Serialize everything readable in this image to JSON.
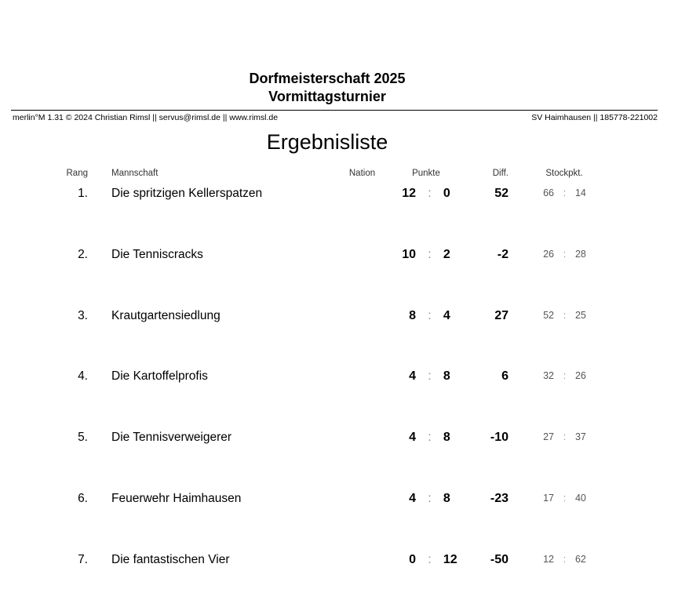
{
  "header": {
    "title_line1": "Dorfmeisterschaft 2025",
    "title_line2": "Vormittagsturnier",
    "info_left": "merlin°M 1.31 © 2024 Christian Rimsl || servus@rimsl.de || www.rimsl.de",
    "info_right": "SV Haimhausen || 185778-221002"
  },
  "list_title": "Ergebnisliste",
  "table": {
    "separator": ":",
    "columns": {
      "rang": "Rang",
      "mannschaft": "Mannschaft",
      "nation": "Nation",
      "punkte": "Punkte",
      "diff": "Diff.",
      "stockpkt": "Stockpkt."
    },
    "rows": [
      {
        "rank": "1.",
        "team": "Die spritzigen Kellerspatzen",
        "punkte_for": "12",
        "punkte_against": "0",
        "diff": "52",
        "stock_for": "66",
        "stock_against": "14"
      },
      {
        "rank": "2.",
        "team": "Die Tenniscracks",
        "punkte_for": "10",
        "punkte_against": "2",
        "diff": "-2",
        "stock_for": "26",
        "stock_against": "28"
      },
      {
        "rank": "3.",
        "team": "Krautgartensiedlung",
        "punkte_for": "8",
        "punkte_against": "4",
        "diff": "27",
        "stock_for": "52",
        "stock_against": "25"
      },
      {
        "rank": "4.",
        "team": "Die Kartoffelprofis",
        "punkte_for": "4",
        "punkte_against": "8",
        "diff": "6",
        "stock_for": "32",
        "stock_against": "26"
      },
      {
        "rank": "5.",
        "team": "Die Tennisverweigerer",
        "punkte_for": "4",
        "punkte_against": "8",
        "diff": "-10",
        "stock_for": "27",
        "stock_against": "37"
      },
      {
        "rank": "6.",
        "team": "Feuerwehr Haimhausen",
        "punkte_for": "4",
        "punkte_against": "8",
        "diff": "-23",
        "stock_for": "17",
        "stock_against": "40"
      },
      {
        "rank": "7.",
        "team": "Die fantastischen Vier",
        "punkte_for": "0",
        "punkte_against": "12",
        "diff": "-50",
        "stock_for": "12",
        "stock_against": "62"
      }
    ]
  },
  "colors": {
    "text": "#000000",
    "muted": "#555555",
    "separator": "#8f8f8f"
  }
}
